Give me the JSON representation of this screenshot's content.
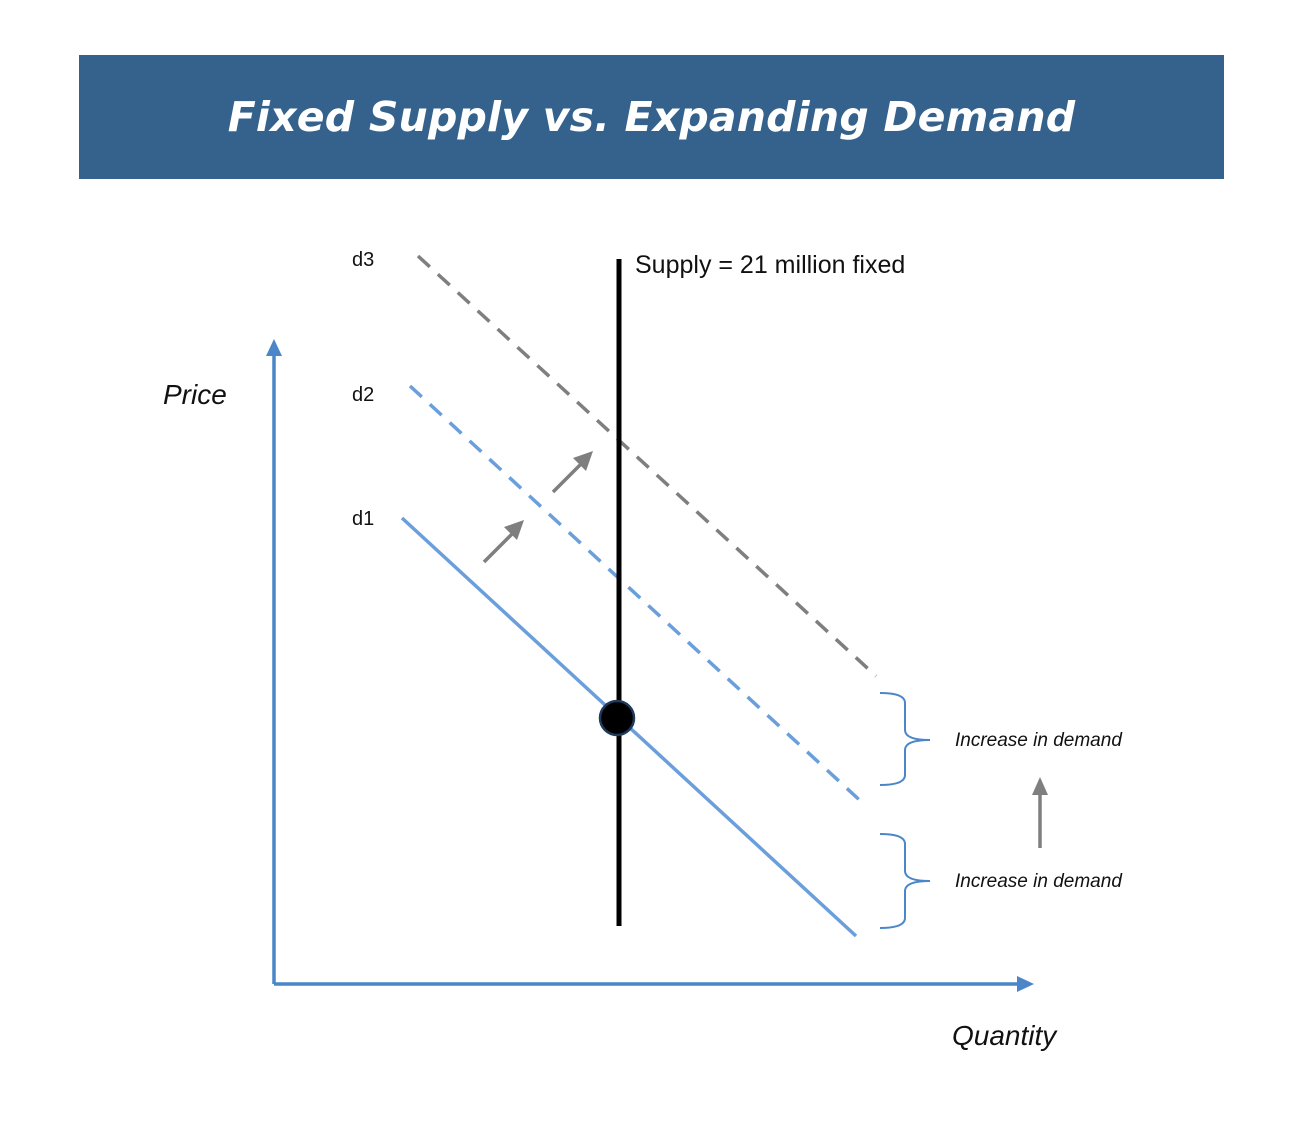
{
  "title": "Fixed Supply vs. Expanding Demand",
  "axes": {
    "y_label": "Price",
    "x_label": "Quantity",
    "color": "#4a86c8"
  },
  "supply": {
    "label": "Supply = 21 million fixed",
    "color": "#000000"
  },
  "demand_curves": [
    {
      "label": "d1",
      "style": "solid",
      "color": "#6a9fdc"
    },
    {
      "label": "d2",
      "style": "dashed",
      "color": "#6a9fdc"
    },
    {
      "label": "d3",
      "style": "dashed",
      "color": "#7f7f7f"
    }
  ],
  "annotations": {
    "upper_brace_text": "Increase in demand",
    "lower_brace_text": "Increase in demand",
    "arrow_color": "#7f7f7f"
  },
  "colors": {
    "banner": "#34628c",
    "equilibrium_point": "#000000"
  }
}
